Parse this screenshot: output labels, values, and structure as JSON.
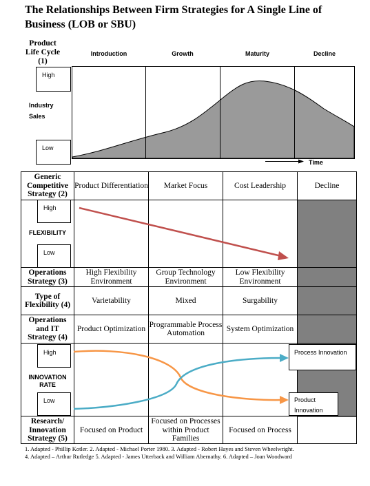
{
  "title": "The Relationships Between Firm Strategies for A Single Line of Business (LOB or SBU)",
  "plc": {
    "label_line1": "Product",
    "label_line2": "Life Cycle",
    "label_line3": "(1)",
    "stages": [
      "Introduction",
      "Growth",
      "Maturity",
      "Decline"
    ],
    "y_label_line1": "Industry",
    "y_label_line2": "Sales",
    "high": "High",
    "low": "Low",
    "time": "Time"
  },
  "generic_strategy": {
    "label": "Generic Competitive Strategy (2)",
    "values": [
      "Product Differentiation",
      "Market Focus",
      "Cost Leadership",
      "Decline"
    ]
  },
  "flexibility": {
    "high": "High",
    "label": "FLEXIBILITY",
    "low": "Low"
  },
  "operations_strategy": {
    "label": "Operations Strategy (3)",
    "values": [
      "High Flexibility Environment",
      "Group Technology Environment",
      "Low Flexibility Environment"
    ]
  },
  "type_flexibility": {
    "label": "Type of Flexibility (4)",
    "values": [
      "Varietability",
      "Mixed",
      "Surgability"
    ]
  },
  "ops_it": {
    "label": "Operations and IT Strategy (4)",
    "values": [
      "Product Optimization",
      "Programmable Process Automation",
      "System Optimization"
    ]
  },
  "innovation": {
    "high": "High",
    "label_line1": "INNOVATION",
    "label_line2": "RATE",
    "low": "Low",
    "process_label": "Process Innovation",
    "product_label": "Product Innovation"
  },
  "research": {
    "label": "Research/ Innovation Strategy (5)",
    "values": [
      "Focused on Product",
      "Focused on Processes within Product Families",
      "Focused on Process"
    ]
  },
  "footnotes": [
    "1. Adapted - Phillip Kotler. 2. Adapted - Michael Porter 1980. 3. Adapted - Robert Hayes and Steven Wheelwright.",
    "4. Adapted – Arthur Rutledge 5. Adapted - James Utterback and William Abernathy.  6. Adapted – Joan Woodward"
  ],
  "colors": {
    "flexibility_arrow": "#c0504d",
    "process_curve": "#4bacc6",
    "product_curve": "#f79646",
    "decline_fill": "#808080",
    "sales_curve_fill": "#9a9a9a"
  }
}
